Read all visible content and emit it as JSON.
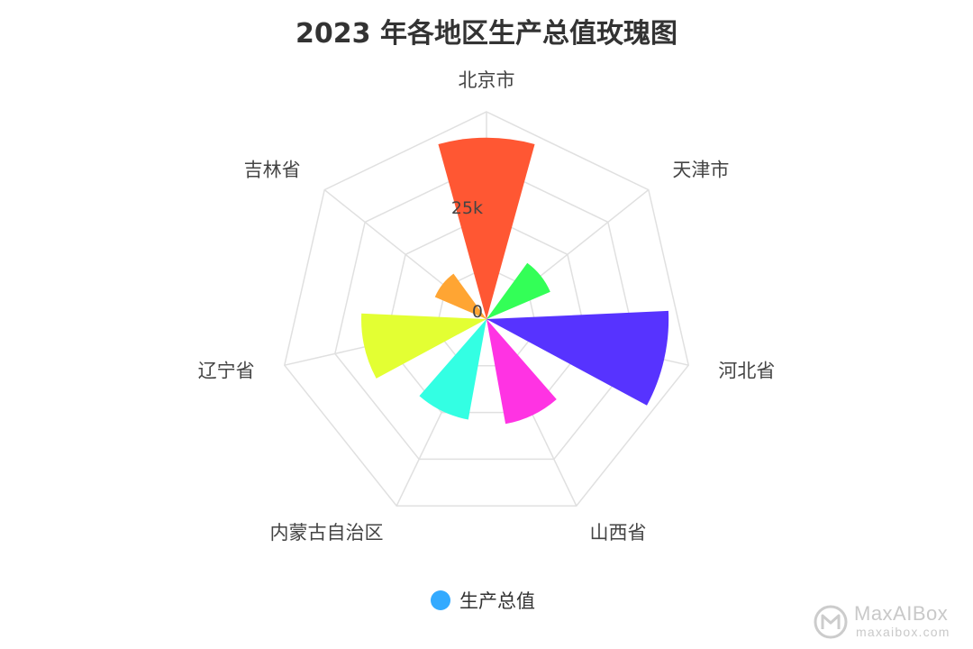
{
  "chart_data": {
    "type": "rose",
    "title": "2023 年各地区生产总值玫瑰图",
    "categories": [
      "北京市",
      "天津市",
      "河北省",
      "山西省",
      "内蒙古自治区",
      "辽宁省",
      "吉林省"
    ],
    "series": [
      {
        "name": "生产总值",
        "values": [
          43760,
          16737,
          43944,
          25698,
          24627,
          30209,
          13531
        ]
      }
    ],
    "colors": [
      "#ff5733",
      "#33ff57",
      "#5733ff",
      "#ff33e3",
      "#33ffe3",
      "#e3ff33",
      "#ffa533"
    ],
    "radial_ticks": [
      "0",
      "25k"
    ],
    "radial_range": [
      0,
      50000
    ],
    "grid": true,
    "legend": {
      "position": "bottom-center",
      "color": "#33aaff"
    }
  },
  "watermark": {
    "line1": "MaxAIBox",
    "line2": "maxaibox.com",
    "icon": "maxaibox-logo-icon"
  }
}
